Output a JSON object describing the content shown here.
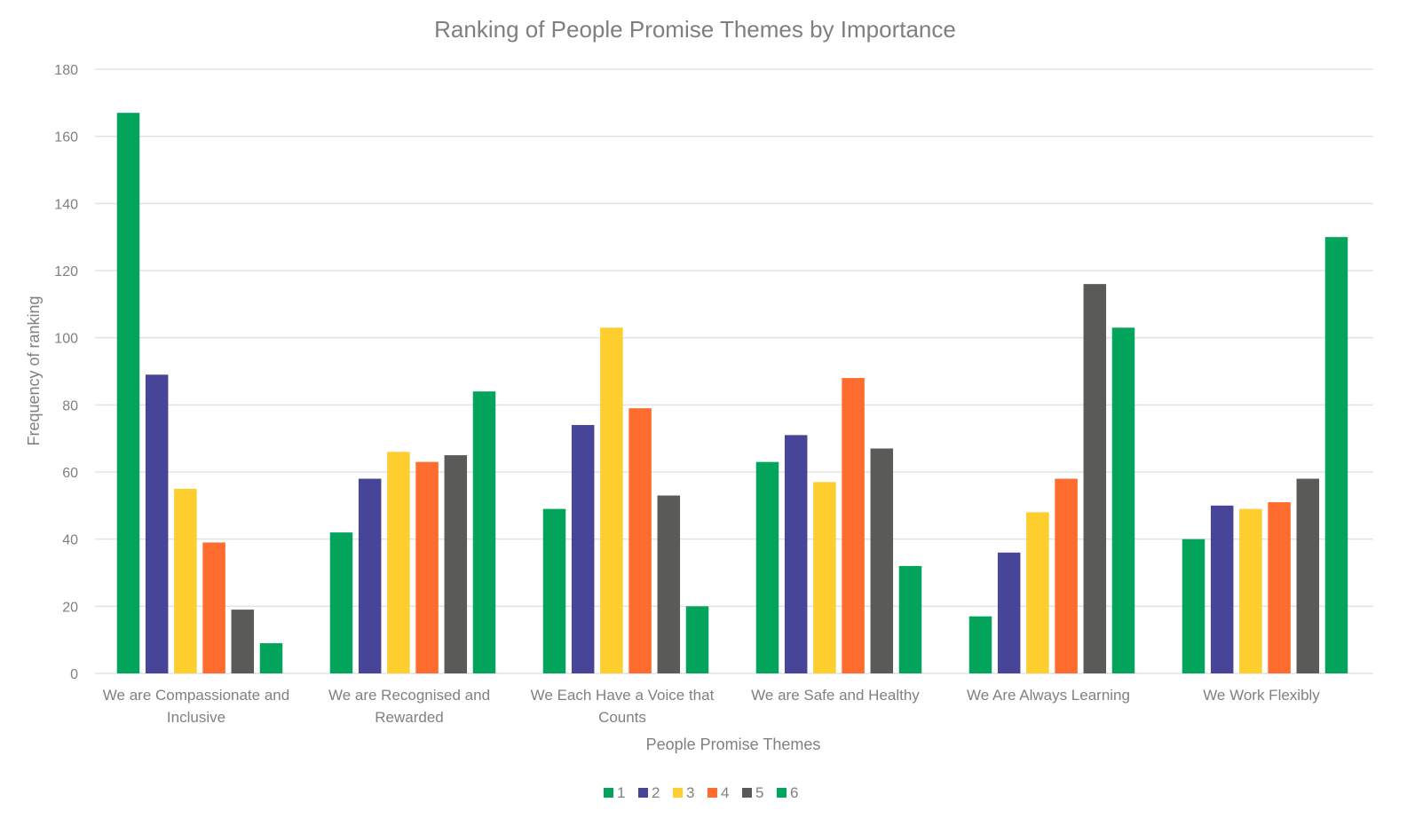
{
  "chart_data": {
    "type": "bar",
    "title": "Ranking of People Promise Themes by Importance",
    "xlabel": "People Promise Themes",
    "ylabel": "Frequency of ranking",
    "ylim": [
      0,
      180
    ],
    "yticks": [
      0,
      20,
      40,
      60,
      80,
      100,
      120,
      140,
      160,
      180
    ],
    "grid": true,
    "legend_position": "bottom",
    "categories": [
      [
        "We are Compassionate and",
        "Inclusive"
      ],
      [
        "We are Recognised and",
        "Rewarded"
      ],
      [
        "We Each Have a Voice that",
        "Counts"
      ],
      [
        "We are Safe and Healthy"
      ],
      [
        "We Are Always Learning"
      ],
      [
        "We Work Flexibly"
      ]
    ],
    "series": [
      {
        "name": "1",
        "color": "#03a55c",
        "values": [
          167,
          42,
          49,
          63,
          17,
          40
        ]
      },
      {
        "name": "2",
        "color": "#474597",
        "values": [
          89,
          58,
          74,
          71,
          36,
          50
        ]
      },
      {
        "name": "3",
        "color": "#fecd2e",
        "values": [
          55,
          66,
          103,
          57,
          48,
          49
        ]
      },
      {
        "name": "4",
        "color": "#fe6d2f",
        "values": [
          39,
          63,
          79,
          88,
          58,
          51
        ]
      },
      {
        "name": "5",
        "color": "#5a5a58",
        "values": [
          19,
          65,
          53,
          67,
          116,
          58
        ]
      },
      {
        "name": "6",
        "color": "#03a55c",
        "values": [
          9,
          84,
          20,
          32,
          103,
          130
        ]
      }
    ]
  }
}
